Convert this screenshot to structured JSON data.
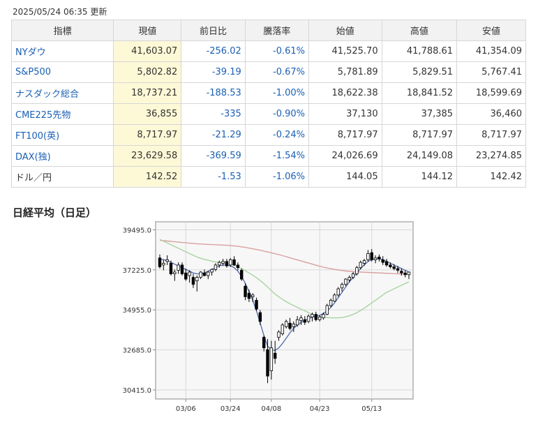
{
  "updated": "2025/05/24 06:35 更新",
  "table": {
    "headers": [
      "指標",
      "現値",
      "前日比",
      "騰落率",
      "始値",
      "高値",
      "安値"
    ],
    "rows": [
      {
        "name": "NYダウ",
        "link": true,
        "price": "41,603.07",
        "change": "-256.02",
        "pct": "-0.61%",
        "open": "41,525.70",
        "high": "41,788.61",
        "low": "41,354.09"
      },
      {
        "name": "S&P500",
        "link": true,
        "price": "5,802.82",
        "change": "-39.19",
        "pct": "-0.67%",
        "open": "5,781.89",
        "high": "5,829.51",
        "low": "5,767.41"
      },
      {
        "name": "ナスダック総合",
        "link": true,
        "price": "18,737.21",
        "change": "-188.53",
        "pct": "-1.00%",
        "open": "18,622.38",
        "high": "18,841.52",
        "low": "18,599.69"
      },
      {
        "name": "CME225先物",
        "link": true,
        "price": "36,855",
        "change": "-335",
        "pct": "-0.90%",
        "open": "37,130",
        "high": "37,385",
        "low": "36,460"
      },
      {
        "name": "FT100(英)",
        "link": true,
        "price": "8,717.97",
        "change": "-21.29",
        "pct": "-0.24%",
        "open": "8,717.97",
        "high": "8,717.97",
        "low": "8,717.97"
      },
      {
        "name": "DAX(独)",
        "link": true,
        "price": "23,629.58",
        "change": "-369.59",
        "pct": "-1.54%",
        "open": "24,026.69",
        "high": "24,149.08",
        "low": "23,274.85"
      },
      {
        "name": "ドル／円",
        "link": false,
        "price": "142.52",
        "change": "-1.53",
        "pct": "-1.06%",
        "open": "144.05",
        "high": "144.12",
        "low": "142.42"
      }
    ]
  },
  "section_title": "日経平均（日足）",
  "chart_data": {
    "type": "candlestick",
    "yticks": [
      39495.0,
      37225.0,
      34955.0,
      32685.0,
      30415.0
    ],
    "ytick_labels": [
      "39495.0",
      "37225.0",
      "34955.0",
      "32685.0",
      "30415.0"
    ],
    "ylim": [
      29900,
      39950
    ],
    "xtick_labels": [
      {
        "label": "03/06",
        "index": 7
      },
      {
        "label": "03/24",
        "index": 19
      },
      {
        "label": "04/08",
        "index": 30
      },
      {
        "label": "04/23",
        "index": 43
      },
      {
        "label": "05/13",
        "index": 57
      }
    ],
    "candles": [
      [
        37900,
        38100,
        37300,
        37400
      ],
      [
        37500,
        37800,
        37200,
        37600
      ],
      [
        37700,
        38050,
        37500,
        37800
      ],
      [
        37600,
        37750,
        36900,
        37000
      ],
      [
        37000,
        37250,
        36600,
        37100
      ],
      [
        37200,
        37650,
        37000,
        37500
      ],
      [
        37500,
        37650,
        36900,
        37000
      ],
      [
        37050,
        37300,
        36600,
        36700
      ],
      [
        36900,
        37200,
        36500,
        37100
      ],
      [
        36800,
        37000,
        36200,
        36400
      ],
      [
        36600,
        36900,
        36000,
        36800
      ],
      [
        36800,
        37150,
        36700,
        37100
      ],
      [
        37050,
        37250,
        36850,
        36900
      ],
      [
        36900,
        37150,
        36700,
        37100
      ],
      [
        37100,
        37300,
        36900,
        37250
      ],
      [
        37250,
        37600,
        37150,
        37500
      ],
      [
        37500,
        37750,
        37350,
        37650
      ],
      [
        37600,
        37850,
        37450,
        37700
      ],
      [
        37700,
        37850,
        37350,
        37450
      ],
      [
        37500,
        37900,
        37400,
        37800
      ],
      [
        37800,
        38000,
        37450,
        37500
      ],
      [
        37500,
        37650,
        37200,
        37350
      ],
      [
        37200,
        37300,
        36600,
        36700
      ],
      [
        36300,
        36450,
        35500,
        35700
      ],
      [
        35900,
        36100,
        35400,
        35600
      ],
      [
        35700,
        35900,
        35400,
        35800
      ],
      [
        35500,
        35650,
        34900,
        35000
      ],
      [
        34800,
        34950,
        34100,
        34300
      ],
      [
        33400,
        33500,
        32600,
        32800
      ],
      [
        32700,
        33300,
        30800,
        31200
      ],
      [
        31500,
        33200,
        31000,
        32800
      ],
      [
        32500,
        33200,
        31900,
        32200
      ],
      [
        33400,
        33800,
        33200,
        33700
      ],
      [
        33600,
        34200,
        33500,
        34100
      ],
      [
        34000,
        34400,
        33900,
        34300
      ],
      [
        34200,
        34500,
        33800,
        33900
      ],
      [
        34000,
        34300,
        33700,
        34150
      ],
      [
        34100,
        34600,
        34000,
        34400
      ],
      [
        34350,
        34650,
        34100,
        34500
      ],
      [
        34400,
        34600,
        34100,
        34250
      ],
      [
        34300,
        34700,
        34200,
        34600
      ],
      [
        34550,
        34800,
        34300,
        34700
      ],
      [
        34700,
        34850,
        34300,
        34400
      ],
      [
        34400,
        34650,
        34300,
        34550
      ],
      [
        34500,
        34800,
        34400,
        34700
      ],
      [
        34700,
        35300,
        34650,
        35200
      ],
      [
        35200,
        35600,
        35100,
        35500
      ],
      [
        35450,
        35900,
        35400,
        35800
      ],
      [
        35800,
        36250,
        35700,
        36150
      ],
      [
        36200,
        36500,
        36000,
        36400
      ],
      [
        36400,
        36750,
        36300,
        36700
      ],
      [
        36650,
        36900,
        36500,
        36800
      ],
      [
        36800,
        37100,
        36700,
        37000
      ],
      [
        37000,
        37450,
        36900,
        37350
      ],
      [
        37350,
        37750,
        37250,
        37650
      ],
      [
        37600,
        37850,
        37450,
        37750
      ],
      [
        37800,
        38350,
        37700,
        38150
      ],
      [
        38200,
        38400,
        37700,
        37800
      ],
      [
        37800,
        38050,
        37600,
        37900
      ],
      [
        37950,
        38100,
        37700,
        37850
      ],
      [
        37800,
        38000,
        37500,
        37650
      ],
      [
        37700,
        37850,
        37400,
        37500
      ],
      [
        37500,
        37650,
        37300,
        37400
      ],
      [
        37400,
        37550,
        37200,
        37300
      ],
      [
        37300,
        37450,
        37050,
        37200
      ],
      [
        37150,
        37300,
        36900,
        37050
      ],
      [
        37050,
        37200,
        36800,
        36950
      ],
      [
        36950,
        37100,
        36700,
        37100
      ]
    ],
    "ma_short": [
      37850,
      37800,
      37750,
      37650,
      37550,
      37450,
      37350,
      37250,
      37150,
      37050,
      37000,
      37000,
      37050,
      37150,
      37250,
      37350,
      37450,
      37500,
      37500,
      37450,
      37350,
      37150,
      36850,
      36450,
      36000,
      35500,
      34900,
      34200,
      33500,
      32900,
      32700,
      32650,
      32800,
      33050,
      33350,
      33650,
      33900,
      34100,
      34250,
      34350,
      34450,
      34550,
      34600,
      34650,
      34750,
      34900,
      35100,
      35350,
      35650,
      35950,
      36250,
      36550,
      36800,
      37050,
      37300,
      37500,
      37700,
      37800,
      37850,
      37850,
      37800,
      37700,
      37600,
      37500,
      37400,
      37300,
      37200,
      37100
    ],
    "ma_mid": [
      38950,
      38850,
      38750,
      38650,
      38550,
      38450,
      38350,
      38250,
      38150,
      38050,
      37950,
      37880,
      37820,
      37770,
      37720,
      37680,
      37650,
      37620,
      37590,
      37550,
      37480,
      37400,
      37300,
      37180,
      37050,
      36920,
      36780,
      36620,
      36450,
      36250,
      36050,
      35850,
      35700,
      35550,
      35420,
      35300,
      35200,
      35100,
      35000,
      34900,
      34800,
      34700,
      34650,
      34600,
      34560,
      34520,
      34500,
      34500,
      34500,
      34520,
      34560,
      34620,
      34700,
      34800,
      34920,
      35050,
      35200,
      35350,
      35500,
      35650,
      35800,
      35950,
      36050,
      36150,
      36250,
      36350,
      36450,
      36550
    ],
    "ma_long": [
      38900,
      38880,
      38860,
      38840,
      38820,
      38800,
      38780,
      38760,
      38740,
      38720,
      38700,
      38690,
      38680,
      38670,
      38660,
      38650,
      38640,
      38630,
      38620,
      38600,
      38580,
      38560,
      38530,
      38500,
      38460,
      38420,
      38380,
      38340,
      38290,
      38240,
      38190,
      38140,
      38090,
      38030,
      37970,
      37910,
      37850,
      37790,
      37730,
      37670,
      37610,
      37550,
      37490,
      37430,
      37380,
      37330,
      37290,
      37250,
      37220,
      37190,
      37160,
      37140,
      37120,
      37110,
      37100,
      37090,
      37080,
      37070,
      37060,
      37050,
      37040,
      37030,
      37020,
      37010,
      37000,
      36990,
      36980,
      36970
    ],
    "colors": {
      "ma_short": "#5b73b0",
      "ma_mid": "#a8d4a0",
      "ma_long": "#d9a0a0",
      "plot_bg": "#f7f7f7"
    }
  }
}
